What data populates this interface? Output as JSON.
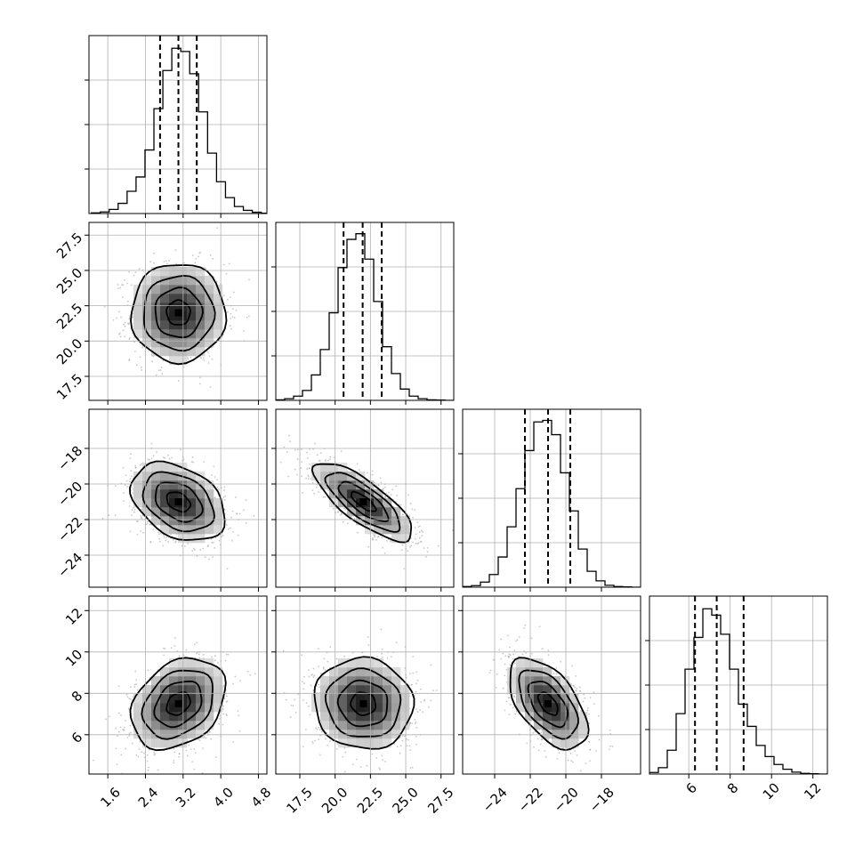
{
  "chart_data": {
    "type": "corner",
    "parameters": [
      {
        "range": [
          1.2,
          4.98
        ],
        "ticks": [
          1.6,
          2.4,
          3.2,
          4.0,
          4.8
        ],
        "tick_labels": [
          "1.6",
          "2.4",
          "3.2",
          "4.0",
          "4.8"
        ],
        "quantiles": [
          2.71,
          3.1,
          3.49
        ],
        "hist_edges_start": 1.25,
        "hist_bin_width": 0.19,
        "hist_counts": [
          2,
          5,
          13,
          32,
          70,
          115,
          200,
          330,
          450,
          520,
          510,
          440,
          320,
          190,
          100,
          50,
          22,
          10,
          4,
          1
        ],
        "hist_ymax": 560
      },
      {
        "range": [
          15.8,
          28.4
        ],
        "ticks": [
          17.5,
          20.0,
          22.5,
          25.0,
          27.5
        ],
        "tick_labels": [
          "17.5",
          "20.0",
          "22.5",
          "25.0",
          "27.5"
        ],
        "quantiles": [
          20.6,
          21.95,
          23.3
        ],
        "hist_edges_start": 15.8,
        "hist_bin_width": 0.63,
        "hist_counts": [
          2,
          6,
          15,
          35,
          90,
          180,
          310,
          470,
          570,
          590,
          500,
          350,
          190,
          95,
          40,
          15,
          6,
          2,
          1,
          0
        ],
        "hist_ymax": 630
      },
      {
        "range": [
          -25.8,
          -15.8
        ],
        "ticks": [
          -24,
          -22,
          -20,
          -18
        ],
        "tick_labels": [
          "−24",
          "−22",
          "−20",
          "−18"
        ],
        "quantiles": [
          -22.3,
          -21.0,
          -19.75
        ],
        "hist_edges_start": -25.8,
        "hist_bin_width": 0.5,
        "hist_counts": [
          2,
          5,
          16,
          40,
          95,
          190,
          310,
          430,
          520,
          525,
          480,
          360,
          240,
          120,
          50,
          20,
          6,
          2,
          1,
          0
        ],
        "hist_ymax": 560
      },
      {
        "range": [
          4.1,
          12.7
        ],
        "ticks": [
          6,
          8,
          10,
          12
        ],
        "tick_labels": [
          "6",
          "8",
          "10",
          "12"
        ],
        "quantiles": [
          6.3,
          7.35,
          8.65
        ],
        "hist_edges_start": 4.1,
        "hist_bin_width": 0.43,
        "hist_counts": [
          5,
          20,
          75,
          190,
          330,
          430,
          520,
          500,
          440,
          330,
          220,
          150,
          90,
          55,
          30,
          15,
          6,
          2,
          1,
          0
        ],
        "hist_ymax": 560
      }
    ],
    "pairs": [
      {
        "row": 1,
        "col": 0,
        "mean": [
          3.1,
          22.0
        ],
        "std": [
          0.5,
          1.75
        ],
        "corr": 0.0
      },
      {
        "row": 2,
        "col": 0,
        "mean": [
          3.1,
          -21.0
        ],
        "std": [
          0.5,
          1.1
        ],
        "corr": -0.35
      },
      {
        "row": 2,
        "col": 1,
        "mean": [
          22.0,
          -21.0
        ],
        "std": [
          1.75,
          1.1
        ],
        "corr": -0.78
      },
      {
        "row": 3,
        "col": 0,
        "mean": [
          3.1,
          7.5
        ],
        "std": [
          0.5,
          1.1
        ],
        "corr": 0.3
      },
      {
        "row": 3,
        "col": 1,
        "mean": [
          22.0,
          7.5
        ],
        "std": [
          1.75,
          1.1
        ],
        "corr": -0.05
      },
      {
        "row": 3,
        "col": 2,
        "mean": [
          -21.0,
          7.5
        ],
        "std": [
          1.1,
          1.1
        ],
        "corr": -0.55
      }
    ],
    "contour_levels_sigma": [
      0.5,
      1.0,
      1.5,
      2.0
    ],
    "grid": true
  }
}
